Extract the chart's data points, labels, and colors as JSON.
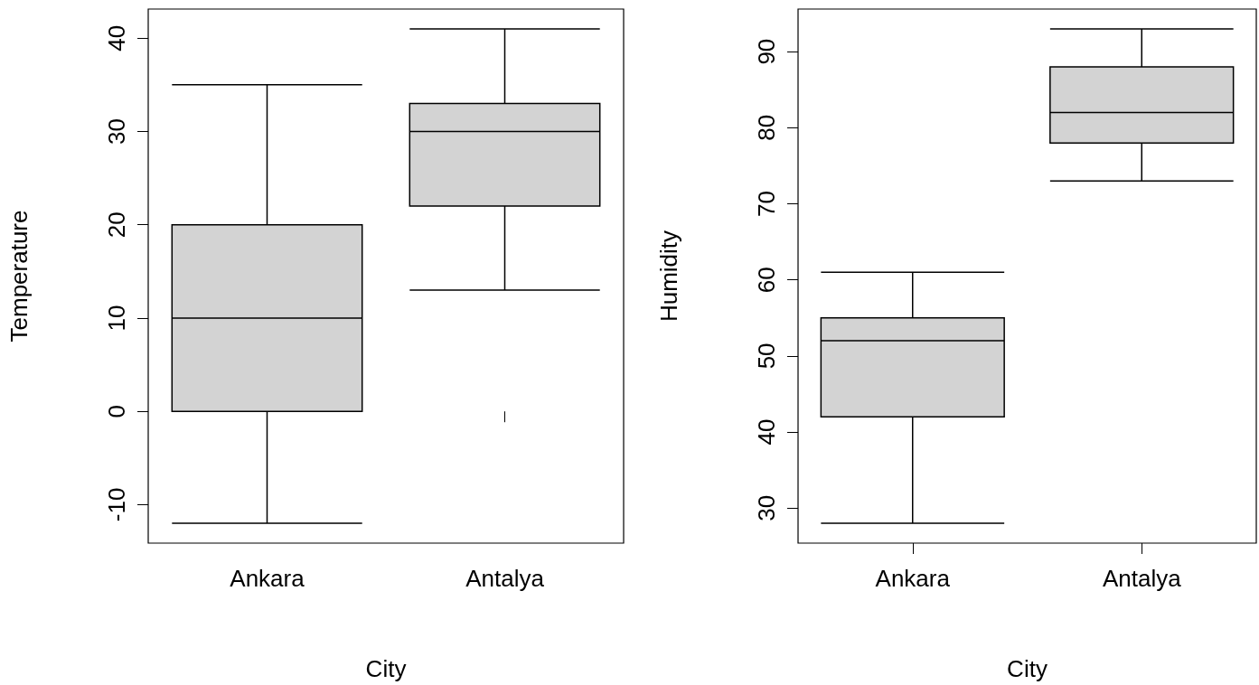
{
  "chart_data": [
    {
      "type": "box",
      "xlabel": "City",
      "ylabel": "Temperature",
      "categories": [
        "Ankara",
        "Antalya"
      ],
      "color": "#d3d3d3",
      "boxes": [
        {
          "low": -12,
          "q1": 0,
          "median": 10,
          "q3": 20,
          "high": 35
        },
        {
          "low": 13,
          "q1": 22,
          "median": 30,
          "q3": 33,
          "high": 41
        }
      ],
      "ylim": [
        -14.12,
        43.12
      ],
      "yticks": [
        -10,
        0,
        10,
        20,
        30,
        40
      ],
      "grid": false
    },
    {
      "type": "box",
      "xlabel": "City",
      "ylabel": "Humidity",
      "categories": [
        "Ankara",
        "Antalya"
      ],
      "color": "#d3d3d3",
      "boxes": [
        {
          "low": 28,
          "q1": 42,
          "median": 52,
          "q3": 55,
          "high": 61
        },
        {
          "low": 73,
          "q1": 78,
          "median": 82,
          "q3": 88,
          "high": 93
        }
      ],
      "ylim": [
        25.4,
        95.6
      ],
      "yticks": [
        30,
        40,
        50,
        60,
        70,
        80,
        90
      ],
      "grid": false
    }
  ]
}
